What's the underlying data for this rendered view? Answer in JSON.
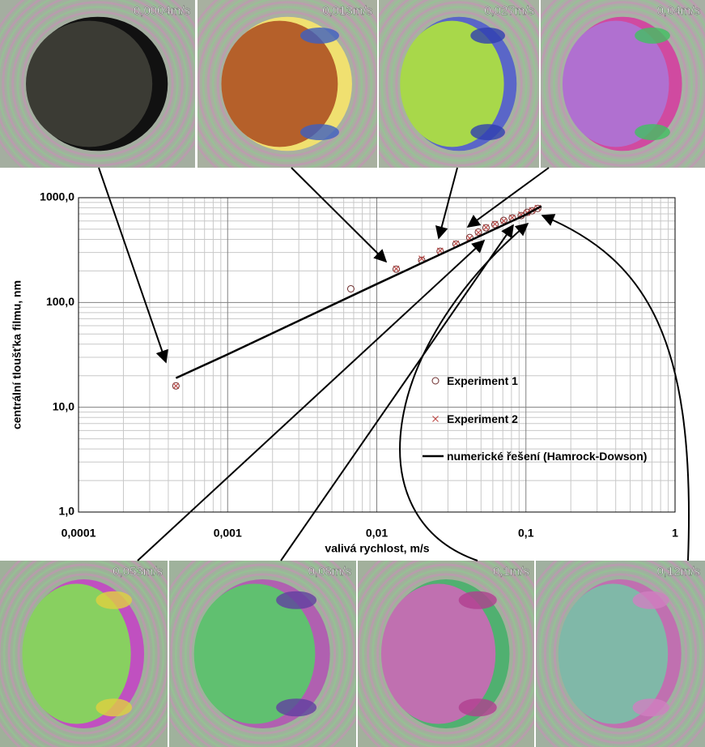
{
  "chart_data": {
    "type": "scatter",
    "x_label": "valivá rychlost, m/s",
    "y_label": "centrální tloušťka filmu, nm",
    "xscale": "log",
    "yscale": "log",
    "xlim": [
      0.0001,
      1
    ],
    "ylim": [
      1,
      1000
    ],
    "xticks": [
      {
        "value": 0.0001,
        "label": "0,0001"
      },
      {
        "value": 0.001,
        "label": "0,001"
      },
      {
        "value": 0.01,
        "label": "0,01"
      },
      {
        "value": 0.1,
        "label": "0,1"
      },
      1
    ],
    "yticks": [
      {
        "value": 1,
        "label": "1,0"
      },
      {
        "value": 10,
        "label": "10,0"
      },
      {
        "value": 100,
        "label": "100,0"
      },
      {
        "value": 1000,
        "label": "1000,0"
      }
    ],
    "grid": true,
    "minor_grid": true,
    "legend": "lower right",
    "series": [
      {
        "name": "Experiment 1",
        "marker": "o",
        "color": "#6b2a2a",
        "x": [
          0.00045,
          0.0067,
          0.0135,
          0.02,
          0.0266,
          0.034,
          0.042,
          0.048,
          0.054,
          0.062,
          0.071,
          0.081,
          0.093,
          0.102,
          0.11,
          0.12
        ],
        "values": [
          16,
          135,
          208,
          253,
          308,
          361,
          417,
          470,
          516,
          555,
          607,
          640,
          675,
          725,
          750,
          790
        ]
      },
      {
        "name": "Experiment 2",
        "marker": "x",
        "color": "#c0504d",
        "x": [
          0.00045,
          0.0135,
          0.02,
          0.0266,
          0.034,
          0.042,
          0.048,
          0.054,
          0.062,
          0.071,
          0.081,
          0.093,
          0.102,
          0.11,
          0.12
        ],
        "values": [
          16,
          210,
          262,
          312,
          365,
          410,
          465,
          520,
          560,
          600,
          645,
          690,
          720,
          760,
          800
        ]
      },
      {
        "name": "numerické řešení (Hamrock-Dowson)",
        "marker": "line",
        "color": "#000000",
        "x": [
          0.00045,
          0.001,
          0.01,
          0.1,
          0.127
        ],
        "values": [
          19,
          32,
          150,
          690,
          830
        ]
      }
    ]
  },
  "panels": {
    "top": [
      "0,0004m/s",
      "0,013m/s",
      "0,027m/s",
      "0,04m/s"
    ],
    "bottom": [
      "0,053m/s",
      "0,08m/s",
      "0,1m/s",
      "0,12m/s"
    ]
  }
}
